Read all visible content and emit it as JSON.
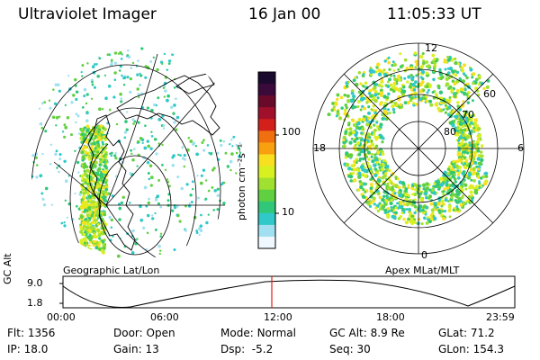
{
  "header": {
    "instrument": "Ultraviolet Imager",
    "date": "16 Jan 00",
    "time": "11:05:33 UT"
  },
  "left_panel": {
    "label": "Geographic Lat/Lon"
  },
  "right_panel": {
    "label": "Apex MLat/MLT",
    "mlt_labels": {
      "top": "12",
      "left": "18",
      "right": "6",
      "bottom": "0"
    },
    "lat_labels": [
      "60",
      "70",
      "80"
    ]
  },
  "colorbar": {
    "unit_label": "photon cm⁻²s⁻¹",
    "ticks": [
      "100",
      "10"
    ],
    "colors": [
      "#1a0a2e",
      "#3a0a3a",
      "#6a0a2a",
      "#a0102a",
      "#d4201a",
      "#f07010",
      "#f8a010",
      "#f8e020",
      "#d8f020",
      "#a0e030",
      "#60d040",
      "#30c878",
      "#30c8c8",
      "#a0e0f0",
      "#f0f8ff"
    ]
  },
  "timeline": {
    "ylabel": "GC Alt",
    "y_ticks": [
      "9.0",
      "1.8"
    ],
    "x_ticks": [
      "00:00",
      "06:00",
      "12:00",
      "18:00",
      "23:59"
    ],
    "current_hour": 11.09,
    "marker_color": "#e02010"
  },
  "info": {
    "row1": [
      {
        "k": "Flt:",
        "v": "1356"
      },
      {
        "k": "Door:",
        "v": "Open"
      },
      {
        "k": "Mode:",
        "v": "Normal"
      },
      {
        "k": "GC Alt:",
        "v": "8.9 Re"
      },
      {
        "k": "GLat:",
        "v": "71.2"
      }
    ],
    "row2": [
      {
        "k": "IP:",
        "v": "18.0"
      },
      {
        "k": "Gain:",
        "v": "13"
      },
      {
        "k": "Dsp:",
        "v": "-5.2"
      },
      {
        "k": "Seq:",
        "v": "30"
      },
      {
        "k": "GLon:",
        "v": "154.3"
      }
    ]
  }
}
